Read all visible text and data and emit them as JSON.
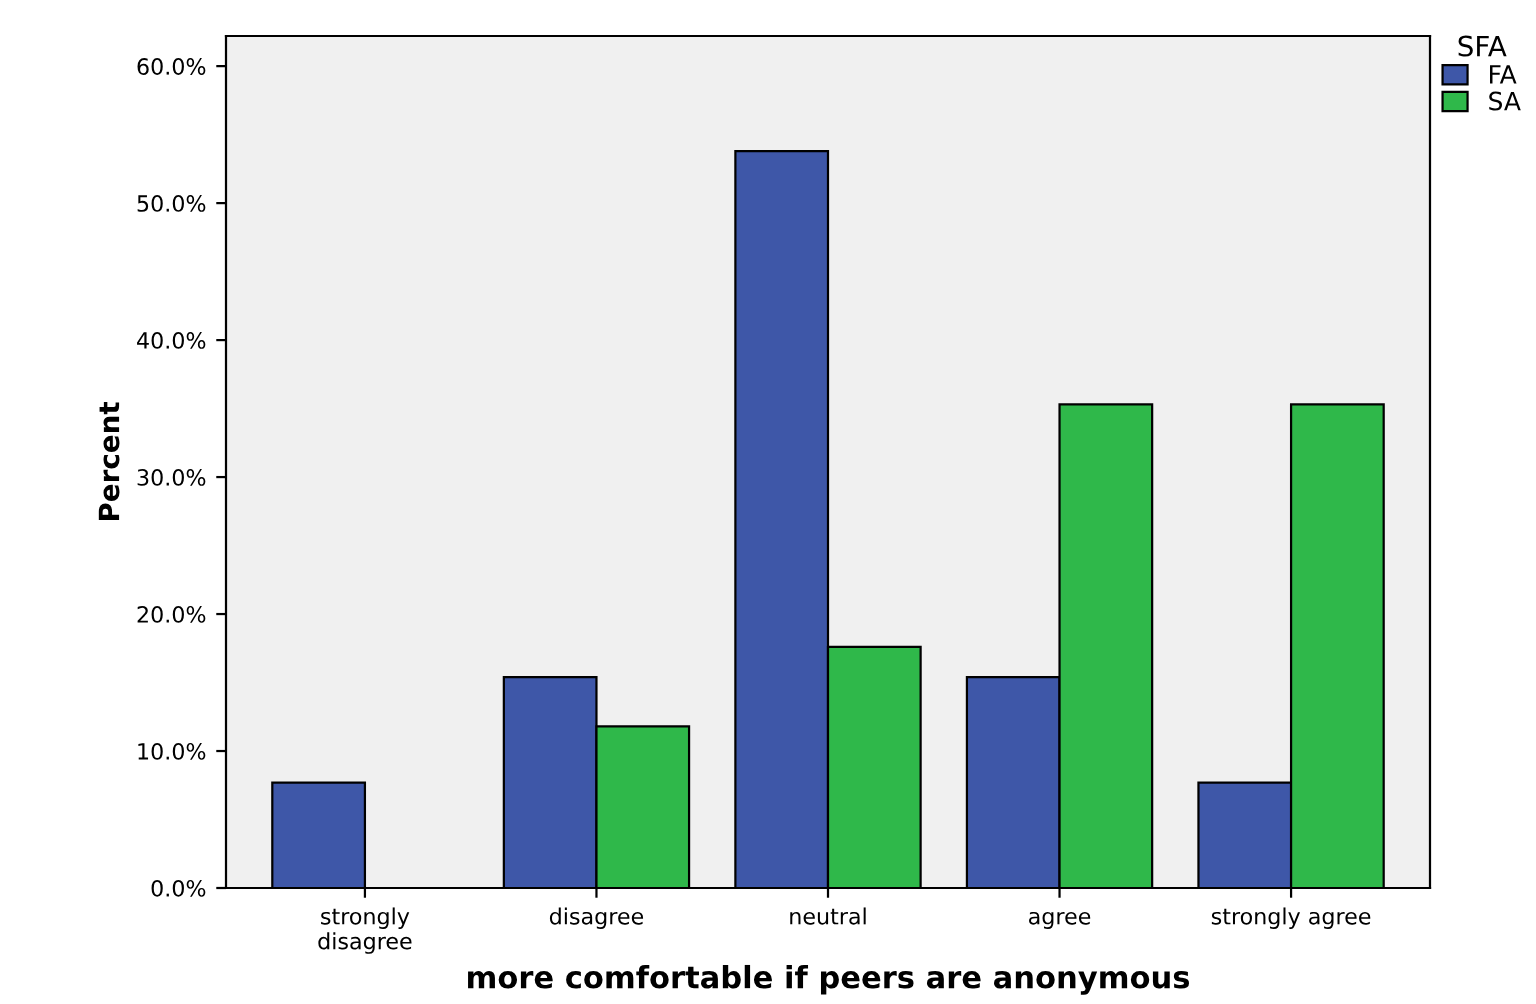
{
  "chart_data": {
    "type": "bar",
    "xlabel": "more comfortable if peers are anonymous",
    "ylabel": "Percent",
    "legend_title": "SFA",
    "categories": [
      "strongly disagree",
      "disagree",
      "neutral",
      "agree",
      "strongly agree"
    ],
    "series": [
      {
        "name": "FA",
        "color": "#3e57a8",
        "values": [
          7.7,
          15.4,
          53.8,
          15.4,
          7.7
        ]
      },
      {
        "name": "SA",
        "color": "#2fb84a",
        "values": [
          0,
          11.8,
          17.6,
          35.3,
          35.3
        ]
      }
    ],
    "ylim": [
      0,
      62.2
    ],
    "yticks": [
      {
        "value": 0,
        "label": "0.0%"
      },
      {
        "value": 10,
        "label": "10.0%"
      },
      {
        "value": 20,
        "label": "20.0%"
      },
      {
        "value": 30,
        "label": "30.0%"
      },
      {
        "value": 40,
        "label": "40.0%"
      },
      {
        "value": 50,
        "label": "50.0%"
      },
      {
        "value": 60,
        "label": "60.0%"
      }
    ],
    "grid": false,
    "legend": "top right"
  }
}
